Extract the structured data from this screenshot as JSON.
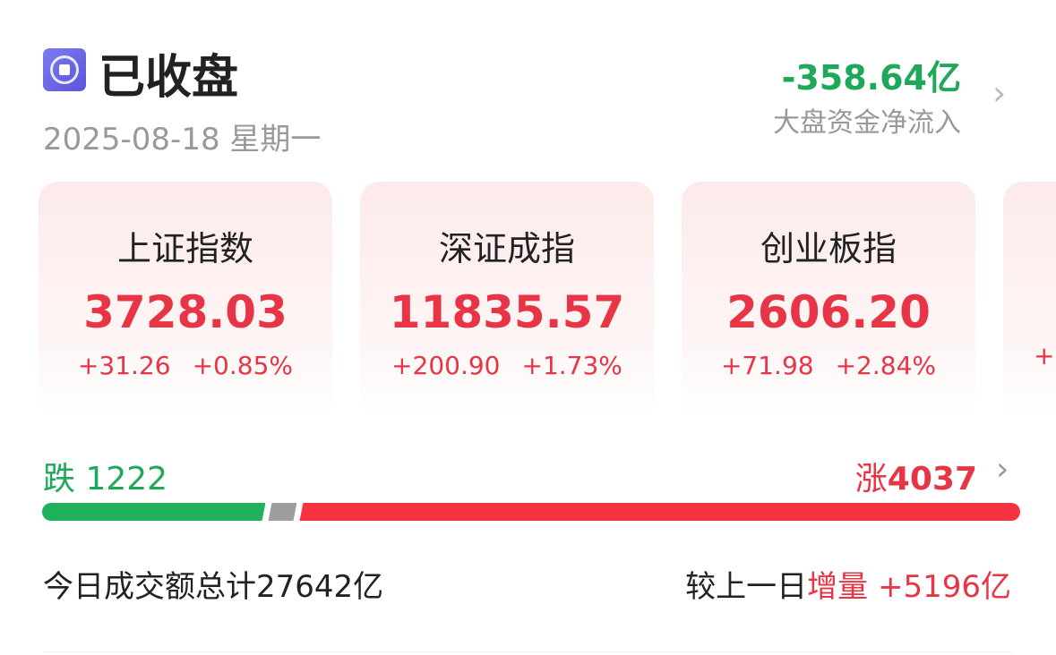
{
  "header": {
    "status": "已收盘",
    "date": "2025-08-18",
    "weekday": "星期一",
    "status_icon": "stop-circle-icon"
  },
  "fund_flow": {
    "value": "-358.64亿",
    "label": "大盘资金净流入",
    "color": "#1fa85a"
  },
  "indices": [
    {
      "name": "上证指数",
      "price": "3728.03",
      "change": "+31.26",
      "pct": "+0.85%"
    },
    {
      "name": "深证成指",
      "price": "11835.57",
      "change": "+200.90",
      "pct": "+1.73%"
    },
    {
      "name": "创业板指",
      "price": "2606.20",
      "change": "+71.98",
      "pct": "+2.84%"
    },
    {
      "name": "",
      "price": "",
      "change": "+",
      "pct": ""
    }
  ],
  "breadth": {
    "down_label": "跌",
    "down": "1222",
    "up_label": "涨",
    "up": "4037",
    "flat": 90,
    "colors": {
      "down": "#1fb25a",
      "flat": "#9e9e9e",
      "up": "#f5323f"
    }
  },
  "turnover": {
    "label": "今日成交额总计",
    "value": "27642亿",
    "compare_label": "较上一日",
    "compare_dir": "增量",
    "compare_value": "+5196亿"
  }
}
